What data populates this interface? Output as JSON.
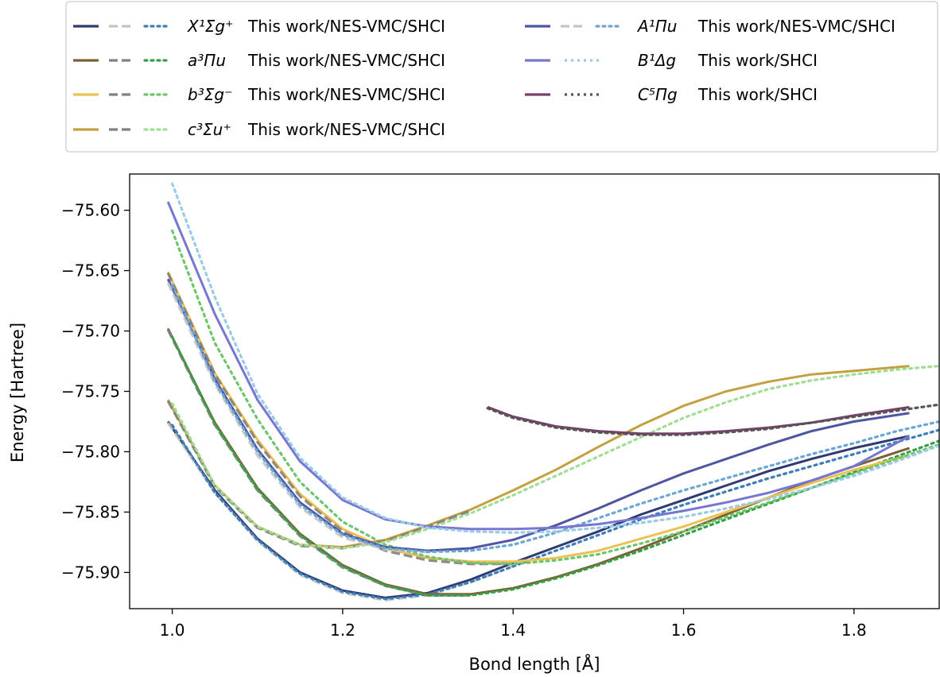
{
  "chart_data": {
    "type": "line",
    "xlabel": "Bond length [Å]",
    "ylabel": "Energy [Hartree]",
    "xlim": [
      0.95,
      1.9
    ],
    "ylim": [
      -75.93,
      -75.57
    ],
    "xticks": [
      1.0,
      1.2,
      1.4,
      1.6,
      1.8
    ],
    "xtick_labels": [
      "1.0",
      "1.2",
      "1.4",
      "1.6",
      "1.8"
    ],
    "yticks": [
      -75.9,
      -75.85,
      -75.8,
      -75.75,
      -75.7,
      -75.65,
      -75.6
    ],
    "ytick_labels": [
      "−75.90",
      "−75.85",
      "−75.80",
      "−75.75",
      "−75.70",
      "−75.65",
      "−75.60"
    ],
    "grid": false,
    "legend_placement": "top, above plot, two columns",
    "legend": [
      {
        "label": "This work/NES-VMC/SHCI",
        "state": "X¹Σg⁺",
        "colors": [
          "#2f3a73",
          "#c4c4c4",
          "#3c7fb8"
        ]
      },
      {
        "label": "This work/NES-VMC/SHCI",
        "state": "a³Πu",
        "colors": [
          "#7d5f33",
          "#808080",
          "#35a045"
        ]
      },
      {
        "label": "This work/NES-VMC/SHCI",
        "state": "b³Σg⁻",
        "colors": [
          "#ecc055",
          "#808080",
          "#6dc76a"
        ]
      },
      {
        "label": "This work/NES-VMC/SHCI",
        "state": "c³Σu⁺",
        "colors": [
          "#c3a040",
          "#808080",
          "#a3dd95"
        ]
      },
      {
        "label": "This work/NES-VMC/SHCI",
        "state": "A¹Πu",
        "colors": [
          "#4e55a3",
          "#c4c4c4",
          "#6aa7d6"
        ]
      },
      {
        "label": "This work/SHCI",
        "state": "B¹Δg",
        "colors": [
          "#7577d0",
          "#9ccbe6"
        ]
      },
      {
        "label": "This work/SHCI",
        "state": "C⁵Πg",
        "colors": [
          "#7b3e6c",
          "#555555"
        ]
      }
    ],
    "series": [
      {
        "name": "X¹Σg⁺ This work",
        "color": "#2f3a73",
        "style": "solid",
        "x": [
          0.995,
          1.05,
          1.1,
          1.15,
          1.2,
          1.25,
          1.3,
          1.35,
          1.4,
          1.45,
          1.5,
          1.55,
          1.6,
          1.65,
          1.7,
          1.75,
          1.8,
          1.865
        ],
        "y": [
          -75.775,
          -75.832,
          -75.872,
          -75.9,
          -75.915,
          -75.921,
          -75.917,
          -75.906,
          -75.892,
          -75.879,
          -75.866,
          -75.852,
          -75.84,
          -75.828,
          -75.816,
          -75.806,
          -75.797,
          -75.787
        ]
      },
      {
        "name": "X¹Σg⁺ NES-VMC",
        "color": "#c4c4c4",
        "style": "dashed",
        "x": [
          0.995,
          1.05,
          1.1,
          1.15,
          1.2,
          1.25,
          1.3,
          1.35,
          1.4
        ],
        "y": [
          -75.776,
          -75.834,
          -75.874,
          -75.902,
          -75.917,
          -75.923,
          -75.919,
          -75.908,
          -75.895
        ]
      },
      {
        "name": "X¹Σg⁺ SHCI",
        "color": "#3c7fb8",
        "style": "dotted",
        "x": [
          1.0,
          1.05,
          1.1,
          1.15,
          1.2,
          1.25,
          1.3,
          1.35,
          1.4,
          1.45,
          1.5,
          1.55,
          1.6,
          1.65,
          1.7,
          1.75,
          1.8,
          1.85,
          1.9
        ],
        "y": [
          -75.778,
          -75.834,
          -75.873,
          -75.901,
          -75.916,
          -75.922,
          -75.918,
          -75.908,
          -75.895,
          -75.882,
          -75.869,
          -75.856,
          -75.844,
          -75.833,
          -75.822,
          -75.812,
          -75.802,
          -75.792,
          -75.782
        ]
      },
      {
        "name": "a³Πu This work",
        "color": "#7d5f33",
        "style": "solid",
        "x": [
          0.995,
          1.05,
          1.1,
          1.15,
          1.2,
          1.25,
          1.3,
          1.35,
          1.4,
          1.45,
          1.5,
          1.55,
          1.6,
          1.65,
          1.7,
          1.75,
          1.8,
          1.865
        ],
        "y": [
          -75.698,
          -75.776,
          -75.83,
          -75.868,
          -75.894,
          -75.91,
          -75.918,
          -75.918,
          -75.913,
          -75.904,
          -75.893,
          -75.88,
          -75.866,
          -75.852,
          -75.838,
          -75.824,
          -75.812,
          -75.797
        ]
      },
      {
        "name": "a³Πu NES-VMC",
        "color": "#808080",
        "style": "dashed",
        "x": [
          0.995,
          1.05,
          1.1,
          1.15,
          1.2,
          1.25,
          1.3,
          1.35
        ],
        "y": [
          -75.699,
          -75.778,
          -75.832,
          -75.87,
          -75.896,
          -75.911,
          -75.919,
          -75.919
        ]
      },
      {
        "name": "a³Πu SHCI",
        "color": "#35a045",
        "style": "dotted",
        "x": [
          1.0,
          1.05,
          1.1,
          1.15,
          1.2,
          1.25,
          1.3,
          1.35,
          1.4,
          1.45,
          1.5,
          1.55,
          1.6,
          1.65,
          1.7,
          1.75,
          1.8,
          1.85,
          1.9
        ],
        "y": [
          -75.705,
          -75.777,
          -75.831,
          -75.869,
          -75.895,
          -75.911,
          -75.919,
          -75.919,
          -75.914,
          -75.905,
          -75.894,
          -75.882,
          -75.869,
          -75.856,
          -75.843,
          -75.83,
          -75.817,
          -75.804,
          -75.791
        ]
      },
      {
        "name": "b³Σg⁻ This work",
        "color": "#ecc055",
        "style": "solid",
        "x": [
          0.995,
          1.05,
          1.1,
          1.15,
          1.2,
          1.25,
          1.3,
          1.35,
          1.4,
          1.45,
          1.5,
          1.55,
          1.6,
          1.65,
          1.7,
          1.75,
          1.8,
          1.865
        ],
        "y": [
          -75.651,
          -75.735,
          -75.79,
          -75.835,
          -75.864,
          -75.88,
          -75.888,
          -75.891,
          -75.891,
          -75.888,
          -75.882,
          -75.872,
          -75.862,
          -75.85,
          -75.838,
          -75.826,
          -75.815,
          -75.803
        ]
      },
      {
        "name": "b³Σg⁻ NES-VMC",
        "color": "#808080",
        "style": "dashed",
        "x": [
          0.995,
          1.05,
          1.1,
          1.15,
          1.2,
          1.25,
          1.3,
          1.35,
          1.4
        ],
        "y": [
          -75.652,
          -75.736,
          -75.792,
          -75.837,
          -75.866,
          -75.882,
          -75.89,
          -75.893,
          -75.893
        ]
      },
      {
        "name": "b³Σg⁻ SHCI",
        "color": "#6dc76a",
        "style": "dotted",
        "x": [
          1.0,
          1.05,
          1.1,
          1.15,
          1.2,
          1.25,
          1.3,
          1.35,
          1.4,
          1.45,
          1.5,
          1.55,
          1.6,
          1.65,
          1.7,
          1.75,
          1.8,
          1.85,
          1.9
        ],
        "y": [
          -75.617,
          -75.71,
          -75.773,
          -75.825,
          -75.858,
          -75.877,
          -75.887,
          -75.892,
          -75.893,
          -75.89,
          -75.885,
          -75.876,
          -75.866,
          -75.854,
          -75.842,
          -75.83,
          -75.818,
          -75.806,
          -75.794
        ]
      },
      {
        "name": "c³Σu⁺ This work",
        "color": "#c3a040",
        "style": "solid",
        "x": [
          0.995,
          1.05,
          1.1,
          1.15,
          1.2,
          1.25,
          1.3,
          1.35,
          1.4,
          1.45,
          1.5,
          1.55,
          1.6,
          1.65,
          1.7,
          1.75,
          1.8,
          1.865
        ],
        "y": [
          -75.757,
          -75.828,
          -75.862,
          -75.877,
          -75.879,
          -75.873,
          -75.861,
          -75.848,
          -75.832,
          -75.815,
          -75.796,
          -75.778,
          -75.762,
          -75.75,
          -75.742,
          -75.736,
          -75.733,
          -75.729
        ]
      },
      {
        "name": "c³Σu⁺ NES-VMC",
        "color": "#808080",
        "style": "dashed",
        "x": [
          0.995,
          1.05,
          1.1,
          1.15,
          1.2,
          1.25,
          1.3,
          1.35
        ],
        "y": [
          -75.758,
          -75.829,
          -75.863,
          -75.878,
          -75.88,
          -75.874,
          -75.862,
          -75.849
        ]
      },
      {
        "name": "c³Σu⁺ SHCI",
        "color": "#a3dd95",
        "style": "dotted",
        "x": [
          1.0,
          1.05,
          1.1,
          1.15,
          1.2,
          1.25,
          1.3,
          1.35,
          1.4,
          1.45,
          1.5,
          1.55,
          1.6,
          1.65,
          1.7,
          1.75,
          1.8,
          1.85,
          1.9
        ],
        "y": [
          -75.76,
          -75.828,
          -75.862,
          -75.877,
          -75.88,
          -75.875,
          -75.864,
          -75.851,
          -75.836,
          -75.82,
          -75.804,
          -75.788,
          -75.772,
          -75.759,
          -75.748,
          -75.741,
          -75.736,
          -75.732,
          -75.729
        ]
      },
      {
        "name": "A¹Πu This work",
        "color": "#4e55a3",
        "style": "solid",
        "x": [
          0.995,
          1.05,
          1.1,
          1.15,
          1.2,
          1.25,
          1.3,
          1.35,
          1.4,
          1.45,
          1.5,
          1.55,
          1.6,
          1.65,
          1.7,
          1.75,
          1.8,
          1.865
        ],
        "y": [
          -75.657,
          -75.74,
          -75.798,
          -75.842,
          -75.868,
          -75.879,
          -75.882,
          -75.88,
          -75.873,
          -75.861,
          -75.847,
          -75.832,
          -75.818,
          -75.806,
          -75.794,
          -75.783,
          -75.775,
          -75.768
        ]
      },
      {
        "name": "A¹Πu NES-VMC",
        "color": "#c4c4c4",
        "style": "dashed",
        "x": [
          0.995,
          1.05,
          1.1,
          1.15,
          1.2,
          1.25,
          1.3
        ],
        "y": [
          -75.66,
          -75.744,
          -75.803,
          -75.846,
          -75.871,
          -75.881,
          -75.883
        ]
      },
      {
        "name": "A¹Πu SHCI",
        "color": "#6aa7d6",
        "style": "dotted",
        "x": [
          1.0,
          1.05,
          1.1,
          1.15,
          1.2,
          1.25,
          1.3,
          1.35,
          1.4,
          1.45,
          1.5,
          1.55,
          1.6,
          1.65,
          1.7,
          1.75,
          1.8,
          1.85,
          1.9
        ],
        "y": [
          -75.662,
          -75.742,
          -75.8,
          -75.844,
          -75.869,
          -75.88,
          -75.883,
          -75.882,
          -75.877,
          -75.867,
          -75.855,
          -75.843,
          -75.832,
          -75.822,
          -75.812,
          -75.802,
          -75.793,
          -75.783,
          -75.775
        ]
      },
      {
        "name": "B¹Δg This work",
        "color": "#7577d0",
        "style": "solid",
        "x": [
          0.995,
          1.05,
          1.1,
          1.15,
          1.2,
          1.25,
          1.3,
          1.35,
          1.4,
          1.45,
          1.5,
          1.55,
          1.6,
          1.65,
          1.7,
          1.75,
          1.8,
          1.865
        ],
        "y": [
          -75.593,
          -75.686,
          -75.757,
          -75.808,
          -75.84,
          -75.856,
          -75.862,
          -75.864,
          -75.864,
          -75.863,
          -75.86,
          -75.855,
          -75.849,
          -75.842,
          -75.834,
          -75.824,
          -75.812,
          -75.787
        ]
      },
      {
        "name": "B¹Δg SHCI",
        "color": "#9ccbe6",
        "style": "dotted",
        "x": [
          1.0,
          1.05,
          1.1,
          1.15,
          1.2,
          1.25,
          1.3,
          1.35,
          1.4,
          1.45,
          1.5,
          1.55,
          1.6,
          1.65,
          1.7,
          1.75,
          1.8,
          1.85,
          1.9
        ],
        "y": [
          -75.578,
          -75.672,
          -75.752,
          -75.805,
          -75.838,
          -75.855,
          -75.863,
          -75.866,
          -75.867,
          -75.866,
          -75.863,
          -75.859,
          -75.854,
          -75.847,
          -75.839,
          -75.83,
          -75.82,
          -75.808,
          -75.795
        ]
      },
      {
        "name": "C⁵Πg This work",
        "color": "#7b3e6c",
        "style": "solid",
        "x": [
          1.37,
          1.4,
          1.45,
          1.5,
          1.55,
          1.6,
          1.65,
          1.7,
          1.75,
          1.8,
          1.865
        ],
        "y": [
          -75.763,
          -75.771,
          -75.779,
          -75.783,
          -75.785,
          -75.785,
          -75.783,
          -75.78,
          -75.776,
          -75.77,
          -75.763
        ]
      },
      {
        "name": "C⁵Πg SHCI",
        "color": "#555555",
        "style": "dotted",
        "x": [
          1.37,
          1.4,
          1.45,
          1.5,
          1.55,
          1.6,
          1.65,
          1.7,
          1.75,
          1.8,
          1.85,
          1.9
        ],
        "y": [
          -75.764,
          -75.772,
          -75.78,
          -75.784,
          -75.786,
          -75.786,
          -75.784,
          -75.781,
          -75.776,
          -75.771,
          -75.766,
          -75.761
        ]
      }
    ]
  }
}
